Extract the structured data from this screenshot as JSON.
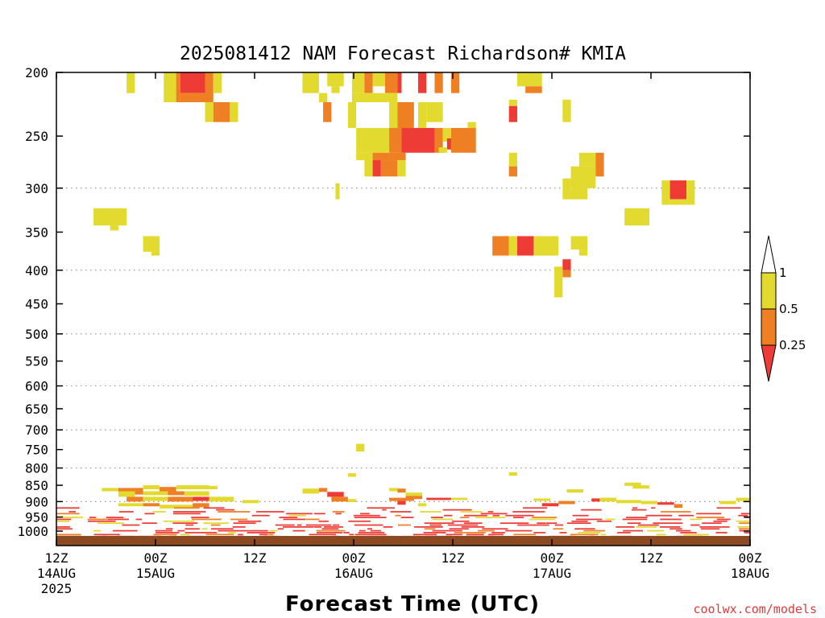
{
  "chart_data": {
    "type": "heatmap",
    "title": "2025081412 NAM Forecast Richardson# KMIA",
    "xlabel": "Forecast Time (UTC)",
    "credit": "coolwx.com/models",
    "y_ticks": [
      "200",
      "250",
      "300",
      "350",
      "400",
      "450",
      "500",
      "550",
      "600",
      "650",
      "700",
      "750",
      "800",
      "850",
      "900",
      "950",
      "1000"
    ],
    "y_scale": "log-pressure (hPa), inverted",
    "y_range": [
      1050,
      200
    ],
    "x_range_hours": [
      0,
      84
    ],
    "x_ticks": [
      {
        "hour": 0,
        "line1": "12Z",
        "line2": "14AUG",
        "line3": "2025"
      },
      {
        "hour": 12,
        "line1": "00Z",
        "line2": "15AUG",
        "line3": ""
      },
      {
        "hour": 24,
        "line1": "12Z",
        "line2": "",
        "line3": ""
      },
      {
        "hour": 36,
        "line1": "00Z",
        "line2": "16AUG",
        "line3": ""
      },
      {
        "hour": 48,
        "line1": "12Z",
        "line2": "",
        "line3": ""
      },
      {
        "hour": 60,
        "line1": "00Z",
        "line2": "17AUG",
        "line3": ""
      },
      {
        "hour": 72,
        "line1": "12Z",
        "line2": "",
        "line3": ""
      },
      {
        "hour": 84,
        "line1": "00Z",
        "line2": "18AUG",
        "line3": ""
      }
    ],
    "grid_lines_p": [
      300,
      400,
      500,
      600,
      700,
      800,
      900
    ],
    "legend": {
      "labels": [
        "1",
        "0.5",
        "0.25"
      ],
      "colors": {
        "lt_0.25": "#ee3b36",
        "0.25_0.5": "#ee7f22",
        "0.5_1": "#e3da2f",
        "gt_1": "#ffffff"
      }
    },
    "colors": {
      "red": "#ee3b36",
      "orange": "#ee7f22",
      "yellow": "#e3da2f",
      "ground": "#8b4a22"
    },
    "cells": [
      {
        "h0": 8.5,
        "h1": 9.5,
        "p0": 200,
        "p1": 215,
        "c": "y"
      },
      {
        "h0": 13,
        "h1": 14.5,
        "p0": 200,
        "p1": 222,
        "c": "y"
      },
      {
        "h0": 14.5,
        "h1": 15,
        "p0": 200,
        "p1": 222,
        "c": "o"
      },
      {
        "h0": 15,
        "h1": 18,
        "p0": 200,
        "p1": 215,
        "c": "r"
      },
      {
        "h0": 15,
        "h1": 18.5,
        "p0": 215,
        "p1": 222,
        "c": "o"
      },
      {
        "h0": 18,
        "h1": 19,
        "p0": 200,
        "p1": 222,
        "c": "o"
      },
      {
        "h0": 19,
        "h1": 20,
        "p0": 200,
        "p1": 215,
        "c": "y"
      },
      {
        "h0": 18,
        "h1": 19,
        "p0": 222,
        "p1": 238,
        "c": "y"
      },
      {
        "h0": 19,
        "h1": 21,
        "p0": 222,
        "p1": 238,
        "c": "o"
      },
      {
        "h0": 21,
        "h1": 22,
        "p0": 222,
        "p1": 238,
        "c": "y"
      },
      {
        "h0": 29.8,
        "h1": 31.8,
        "p0": 200,
        "p1": 215,
        "c": "y"
      },
      {
        "h0": 32.8,
        "h1": 34.8,
        "p0": 200,
        "p1": 210,
        "c": "y"
      },
      {
        "h0": 33.3,
        "h1": 34.3,
        "p0": 210,
        "p1": 215,
        "c": "y"
      },
      {
        "h0": 31.8,
        "h1": 32.8,
        "p0": 215,
        "p1": 222,
        "c": "y"
      },
      {
        "h0": 32.3,
        "h1": 33.3,
        "p0": 222,
        "p1": 238,
        "c": "o"
      },
      {
        "h0": 35.8,
        "h1": 37.3,
        "p0": 200,
        "p1": 215,
        "c": "y"
      },
      {
        "h0": 37.3,
        "h1": 38.3,
        "p0": 200,
        "p1": 215,
        "c": "o"
      },
      {
        "h0": 38.3,
        "h1": 39.8,
        "p0": 200,
        "p1": 210,
        "c": "y"
      },
      {
        "h0": 39.8,
        "h1": 41.3,
        "p0": 200,
        "p1": 215,
        "c": "o"
      },
      {
        "h0": 41.3,
        "h1": 41.8,
        "p0": 200,
        "p1": 215,
        "c": "r"
      },
      {
        "h0": 35.8,
        "h1": 41.3,
        "p0": 215,
        "p1": 222,
        "c": "y"
      },
      {
        "h0": 35.3,
        "h1": 36.3,
        "p0": 222,
        "p1": 243,
        "c": "y"
      },
      {
        "h0": 40.3,
        "h1": 41.3,
        "p0": 222,
        "p1": 243,
        "c": "y"
      },
      {
        "h0": 41.3,
        "h1": 43.3,
        "p0": 222,
        "p1": 243,
        "c": "o"
      },
      {
        "h0": 43.8,
        "h1": 44.8,
        "p0": 200,
        "p1": 215,
        "c": "r"
      },
      {
        "h0": 45.8,
        "h1": 46.8,
        "p0": 200,
        "p1": 215,
        "c": "o"
      },
      {
        "h0": 47.8,
        "h1": 48.8,
        "p0": 200,
        "p1": 215,
        "c": "o"
      },
      {
        "h0": 44.8,
        "h1": 46.8,
        "p0": 222,
        "p1": 238,
        "c": "y"
      },
      {
        "h0": 43.8,
        "h1": 44.8,
        "p0": 222,
        "p1": 243,
        "c": "y"
      },
      {
        "h0": 36.3,
        "h1": 40.3,
        "p0": 243,
        "p1": 265,
        "c": "y"
      },
      {
        "h0": 40.3,
        "h1": 41.8,
        "p0": 243,
        "p1": 265,
        "c": "o"
      },
      {
        "h0": 41.8,
        "h1": 45.8,
        "p0": 243,
        "p1": 265,
        "c": "r"
      },
      {
        "h0": 45.8,
        "h1": 46.8,
        "p0": 243,
        "p1": 265,
        "c": "o"
      },
      {
        "h0": 46.8,
        "h1": 47.8,
        "p0": 243,
        "p1": 255,
        "c": "y"
      },
      {
        "h0": 47.3,
        "h1": 47.8,
        "p0": 252,
        "p1": 262,
        "c": "r"
      },
      {
        "h0": 47.8,
        "h1": 50.8,
        "p0": 243,
        "p1": 265,
        "c": "o"
      },
      {
        "h0": 49.8,
        "h1": 50.8,
        "p0": 238,
        "p1": 243,
        "c": "y"
      },
      {
        "h0": 46.3,
        "h1": 47.3,
        "p0": 260,
        "p1": 265,
        "c": "y"
      },
      {
        "h0": 36.3,
        "h1": 38.3,
        "p0": 265,
        "p1": 272,
        "c": "y"
      },
      {
        "h0": 38.3,
        "h1": 40.3,
        "p0": 265,
        "p1": 272,
        "c": "o"
      },
      {
        "h0": 40.3,
        "h1": 42.3,
        "p0": 265,
        "p1": 272,
        "c": "o"
      },
      {
        "h0": 37.3,
        "h1": 38.3,
        "p0": 272,
        "p1": 288,
        "c": "y"
      },
      {
        "h0": 38.3,
        "h1": 39.3,
        "p0": 272,
        "p1": 288,
        "c": "r"
      },
      {
        "h0": 39.3,
        "h1": 41.3,
        "p0": 272,
        "p1": 288,
        "c": "o"
      },
      {
        "h0": 41.3,
        "h1": 42.3,
        "p0": 272,
        "p1": 288,
        "c": "y"
      },
      {
        "h0": 33.8,
        "h1": 34.3,
        "p0": 295,
        "p1": 312,
        "c": "y"
      },
      {
        "h0": 54.8,
        "h1": 55.8,
        "p0": 220,
        "p1": 225,
        "c": "y"
      },
      {
        "h0": 54.8,
        "h1": 55.8,
        "p0": 225,
        "p1": 238,
        "c": "r"
      },
      {
        "h0": 55.8,
        "h1": 58.8,
        "p0": 200,
        "p1": 210,
        "c": "y"
      },
      {
        "h0": 56.8,
        "h1": 57.8,
        "p0": 210,
        "p1": 215,
        "c": "o"
      },
      {
        "h0": 57.8,
        "h1": 58.8,
        "p0": 210,
        "p1": 215,
        "c": "o"
      },
      {
        "h0": 61.3,
        "h1": 62.3,
        "p0": 220,
        "p1": 238,
        "c": "y"
      },
      {
        "h0": 63.3,
        "h1": 65.3,
        "p0": 265,
        "p1": 278,
        "c": "y"
      },
      {
        "h0": 62.3,
        "h1": 65.3,
        "p0": 278,
        "p1": 300,
        "c": "y"
      },
      {
        "h0": 61.3,
        "h1": 62.3,
        "p0": 290,
        "p1": 312,
        "c": "y"
      },
      {
        "h0": 62.3,
        "h1": 64.3,
        "p0": 300,
        "p1": 312,
        "c": "y"
      },
      {
        "h0": 65.3,
        "h1": 66.3,
        "p0": 265,
        "p1": 288,
        "c": "o"
      },
      {
        "h0": 54.8,
        "h1": 55.8,
        "p0": 265,
        "p1": 278,
        "c": "y"
      },
      {
        "h0": 54.8,
        "h1": 55.8,
        "p0": 278,
        "p1": 288,
        "c": "o"
      },
      {
        "h0": 73.3,
        "h1": 74.3,
        "p0": 292,
        "p1": 318,
        "c": "y"
      },
      {
        "h0": 74.3,
        "h1": 76.3,
        "p0": 292,
        "p1": 312,
        "c": "r"
      },
      {
        "h0": 76.3,
        "h1": 77.3,
        "p0": 292,
        "p1": 318,
        "c": "y"
      },
      {
        "h0": 74.3,
        "h1": 76.3,
        "p0": 312,
        "p1": 318,
        "c": "y"
      },
      {
        "h0": 68.8,
        "h1": 71.8,
        "p0": 322,
        "p1": 342,
        "c": "y"
      },
      {
        "h0": 4.5,
        "h1": 8.5,
        "p0": 322,
        "p1": 342,
        "c": "y"
      },
      {
        "h0": 6.5,
        "h1": 7.5,
        "p0": 342,
        "p1": 348,
        "c": "y"
      },
      {
        "h0": 10.5,
        "h1": 12.5,
        "p0": 355,
        "p1": 375,
        "c": "y"
      },
      {
        "h0": 11.5,
        "h1": 12.5,
        "p0": 375,
        "p1": 380,
        "c": "y"
      },
      {
        "h0": 52.8,
        "h1": 54.8,
        "p0": 355,
        "p1": 380,
        "c": "o"
      },
      {
        "h0": 54.8,
        "h1": 55.8,
        "p0": 355,
        "p1": 380,
        "c": "y"
      },
      {
        "h0": 55.8,
        "h1": 57.8,
        "p0": 355,
        "p1": 380,
        "c": "r"
      },
      {
        "h0": 57.8,
        "h1": 60.8,
        "p0": 355,
        "p1": 380,
        "c": "y"
      },
      {
        "h0": 62.3,
        "h1": 64.3,
        "p0": 355,
        "p1": 372,
        "c": "y"
      },
      {
        "h0": 63.3,
        "h1": 64.3,
        "p0": 372,
        "p1": 380,
        "c": "y"
      },
      {
        "h0": 61.3,
        "h1": 62.3,
        "p0": 385,
        "p1": 400,
        "c": "r"
      },
      {
        "h0": 61.3,
        "h1": 62.3,
        "p0": 400,
        "p1": 410,
        "c": "o"
      },
      {
        "h0": 60.3,
        "h1": 61.3,
        "p0": 395,
        "p1": 440,
        "c": "y"
      },
      {
        "h0": 36.3,
        "h1": 37.3,
        "p0": 735,
        "p1": 755,
        "c": "y"
      },
      {
        "h0": 35.3,
        "h1": 36.3,
        "p0": 815,
        "p1": 825,
        "c": "y"
      },
      {
        "h0": 54.8,
        "h1": 55.8,
        "p0": 812,
        "p1": 822,
        "c": "y"
      },
      {
        "h0": 5.5,
        "h1": 7.5,
        "p0": 858,
        "p1": 868,
        "c": "y"
      },
      {
        "h0": 7.5,
        "h1": 9.5,
        "p0": 858,
        "p1": 868,
        "c": "o"
      },
      {
        "h0": 9.5,
        "h1": 10.5,
        "p0": 858,
        "p1": 878,
        "c": "o"
      },
      {
        "h0": 10.5,
        "h1": 12.5,
        "p0": 850,
        "p1": 862,
        "c": "y"
      },
      {
        "h0": 12.5,
        "h1": 14.5,
        "p0": 855,
        "p1": 868,
        "c": "o"
      },
      {
        "h0": 14.5,
        "h1": 18.5,
        "p0": 850,
        "p1": 862,
        "c": "y"
      },
      {
        "h0": 18.5,
        "h1": 19.5,
        "p0": 852,
        "p1": 862,
        "c": "y"
      },
      {
        "h0": 7.5,
        "h1": 9.5,
        "p0": 868,
        "p1": 885,
        "c": "y"
      },
      {
        "h0": 10.5,
        "h1": 13.5,
        "p0": 868,
        "p1": 880,
        "c": "y"
      },
      {
        "h0": 13.5,
        "h1": 15.5,
        "p0": 868,
        "p1": 880,
        "c": "o"
      },
      {
        "h0": 15.5,
        "h1": 18.5,
        "p0": 868,
        "p1": 882,
        "c": "y"
      },
      {
        "h0": 8.5,
        "h1": 10.5,
        "p0": 885,
        "p1": 900,
        "c": "o"
      },
      {
        "h0": 10.5,
        "h1": 13.5,
        "p0": 885,
        "p1": 898,
        "c": "y"
      },
      {
        "h0": 13.5,
        "h1": 16.5,
        "p0": 885,
        "p1": 900,
        "c": "o"
      },
      {
        "h0": 16.5,
        "h1": 18.5,
        "p0": 885,
        "p1": 898,
        "c": "r"
      },
      {
        "h0": 18.5,
        "h1": 21.5,
        "p0": 885,
        "p1": 900,
        "c": "y"
      },
      {
        "h0": 7.5,
        "h1": 10.5,
        "p0": 905,
        "p1": 915,
        "c": "y"
      },
      {
        "h0": 10.5,
        "h1": 12.5,
        "p0": 905,
        "p1": 915,
        "c": "o"
      },
      {
        "h0": 12.5,
        "h1": 16.5,
        "p0": 910,
        "p1": 922,
        "c": "y"
      },
      {
        "h0": 16.5,
        "h1": 18.5,
        "p0": 905,
        "p1": 918,
        "c": "o"
      },
      {
        "h0": 22.5,
        "h1": 24.5,
        "p0": 895,
        "p1": 905,
        "c": "y"
      },
      {
        "h0": 29.8,
        "h1": 31.8,
        "p0": 860,
        "p1": 875,
        "c": "y"
      },
      {
        "h0": 31.8,
        "h1": 32.8,
        "p0": 858,
        "p1": 870,
        "c": "o"
      },
      {
        "h0": 32.8,
        "h1": 34.8,
        "p0": 870,
        "p1": 885,
        "c": "r"
      },
      {
        "h0": 33.3,
        "h1": 35.3,
        "p0": 885,
        "p1": 900,
        "c": "o"
      },
      {
        "h0": 35.3,
        "h1": 36.3,
        "p0": 892,
        "p1": 902,
        "c": "y"
      },
      {
        "h0": 40.3,
        "h1": 41.3,
        "p0": 858,
        "p1": 868,
        "c": "y"
      },
      {
        "h0": 41.3,
        "h1": 42.3,
        "p0": 860,
        "p1": 872,
        "c": "o"
      },
      {
        "h0": 42.3,
        "h1": 44.3,
        "p0": 872,
        "p1": 882,
        "c": "y"
      },
      {
        "h0": 42.3,
        "h1": 44.3,
        "p0": 882,
        "p1": 892,
        "c": "o"
      },
      {
        "h0": 40.3,
        "h1": 43.3,
        "p0": 888,
        "p1": 898,
        "c": "o"
      },
      {
        "h0": 41.3,
        "h1": 42.3,
        "p0": 898,
        "p1": 910,
        "c": "r"
      },
      {
        "h0": 44.8,
        "h1": 47.8,
        "p0": 888,
        "p1": 895,
        "c": "r"
      },
      {
        "h0": 43.8,
        "h1": 44.8,
        "p0": 905,
        "p1": 915,
        "c": "y"
      },
      {
        "h0": 47.8,
        "h1": 49.8,
        "p0": 888,
        "p1": 895,
        "c": "y"
      },
      {
        "h0": 61.8,
        "h1": 63.8,
        "p0": 862,
        "p1": 872,
        "c": "y"
      },
      {
        "h0": 68.8,
        "h1": 70.8,
        "p0": 842,
        "p1": 852,
        "c": "y"
      },
      {
        "h0": 69.8,
        "h1": 71.8,
        "p0": 850,
        "p1": 860,
        "c": "y"
      },
      {
        "h0": 57.8,
        "h1": 59.8,
        "p0": 890,
        "p1": 898,
        "c": "y"
      },
      {
        "h0": 58.8,
        "h1": 60.8,
        "p0": 905,
        "p1": 915,
        "c": "r"
      },
      {
        "h0": 60.8,
        "h1": 62.8,
        "p0": 898,
        "p1": 908,
        "c": "o"
      },
      {
        "h0": 64.8,
        "h1": 65.8,
        "p0": 890,
        "p1": 900,
        "c": "r"
      },
      {
        "h0": 65.8,
        "h1": 67.8,
        "p0": 888,
        "p1": 900,
        "c": "y"
      },
      {
        "h0": 67.8,
        "h1": 70.8,
        "p0": 895,
        "p1": 905,
        "c": "y"
      },
      {
        "h0": 70.8,
        "h1": 72.8,
        "p0": 898,
        "p1": 908,
        "c": "y"
      },
      {
        "h0": 72.8,
        "h1": 74.8,
        "p0": 902,
        "p1": 910,
        "c": "r"
      },
      {
        "h0": 74.8,
        "h1": 75.8,
        "p0": 908,
        "p1": 920,
        "c": "o"
      },
      {
        "h0": 82.3,
        "h1": 84,
        "p0": 888,
        "p1": 898,
        "c": "y"
      },
      {
        "h0": 80.3,
        "h1": 82.3,
        "p0": 898,
        "p1": 908,
        "c": "y"
      }
    ],
    "low_bands": [
      {
        "p0": 918,
        "p1": 1050,
        "n": 18
      }
    ]
  }
}
